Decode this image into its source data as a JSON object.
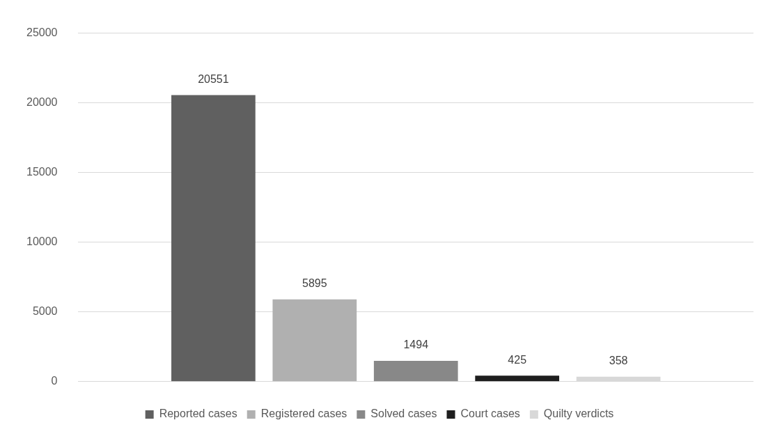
{
  "chart_data": {
    "type": "bar",
    "categories": [
      null
    ],
    "series": [
      {
        "name": "Reported cases",
        "color": "#606060",
        "values": [
          20551
        ]
      },
      {
        "name": "Registered cases",
        "color": "#b0b0b0",
        "values": [
          5895
        ]
      },
      {
        "name": "Solved cases",
        "color": "#888888",
        "values": [
          1494
        ]
      },
      {
        "name": "Court cases",
        "color": "#1e1e1e",
        "values": [
          425
        ]
      },
      {
        "name": "Quilty verdicts",
        "color": "#d8d8d8",
        "values": [
          358
        ]
      }
    ],
    "ylim": [
      0,
      25000
    ],
    "yticks": [
      0,
      5000,
      10000,
      15000,
      20000,
      25000
    ],
    "grid": "y",
    "legend": "bottom",
    "data_labels": true
  }
}
